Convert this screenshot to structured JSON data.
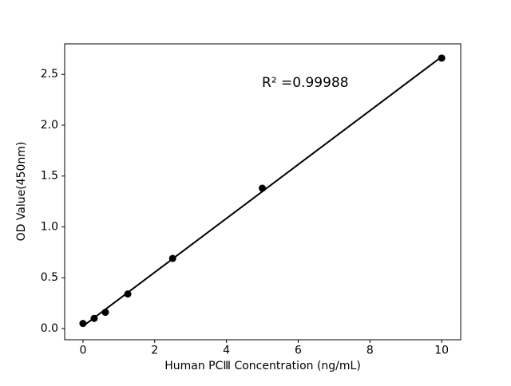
{
  "figure": {
    "background": "#ffffff"
  },
  "chart_data": {
    "type": "scatter",
    "title": "",
    "xlabel": "Human PCⅢ Concentration (ng/mL)",
    "ylabel": "OD Value(450nm)",
    "annotation": "R² =0.99988",
    "x": [
      0,
      0.3125,
      0.625,
      1.25,
      2.5,
      5,
      10
    ],
    "y": [
      0.05,
      0.1,
      0.16,
      0.34,
      0.69,
      1.38,
      2.66
    ],
    "fit_line": {
      "slope": 0.265,
      "intercept": 0.023,
      "x_start": 0,
      "x_end": 10,
      "r_squared": 0.99988
    },
    "xlim": [
      -0.51,
      10.53
    ],
    "ylim": [
      -0.11,
      2.8
    ],
    "x_ticks": [
      0,
      2,
      4,
      6,
      8,
      10
    ],
    "x_tick_labels": [
      "0",
      "2",
      "4",
      "6",
      "8",
      "10"
    ],
    "y_ticks": [
      0,
      0.5,
      1.0,
      1.5,
      2.0,
      2.5
    ],
    "y_tick_labels": [
      "0.0",
      "0.5",
      "1.0",
      "1.5",
      "2.0",
      "2.5"
    ],
    "grid": false,
    "legend": null,
    "marker_color": "#000000",
    "line_color": "#000000",
    "axis_color": "#000000"
  }
}
